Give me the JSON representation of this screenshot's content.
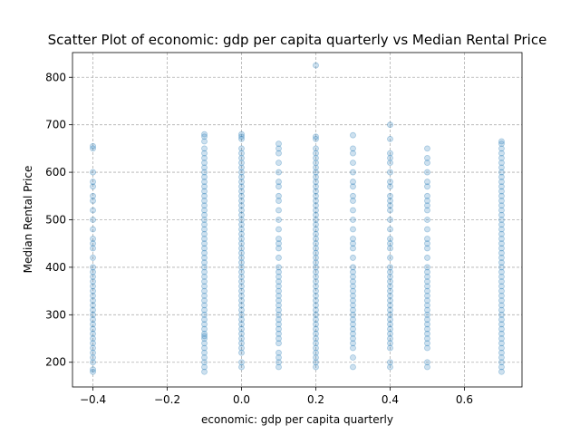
{
  "chart_data": {
    "type": "scatter",
    "title": "Scatter Plot of economic: gdp per capita quarterly vs Median Rental Price",
    "xlabel": "economic: gdp per capita quarterly",
    "ylabel": "Median Rental Price",
    "xlim": [
      -0.455,
      0.755
    ],
    "ylim": [
      148,
      852
    ],
    "xticks": [
      -0.4,
      -0.2,
      0.0,
      0.2,
      0.4,
      0.6
    ],
    "xtick_labels": [
      "−0.4",
      "−0.2",
      "0.0",
      "0.2",
      "0.4",
      "0.6"
    ],
    "yticks": [
      200,
      300,
      400,
      500,
      600,
      700,
      800
    ],
    "ytick_labels": [
      "200",
      "300",
      "400",
      "500",
      "600",
      "700",
      "800"
    ],
    "grid": true,
    "color": "#1f77b4",
    "series": [
      {
        "points": [
          {
            "x": -0.4,
            "y": [
              180,
              185,
              200,
              210,
              220,
              230,
              240,
              250,
              260,
              270,
              280,
              290,
              300,
              310,
              320,
              330,
              340,
              350,
              360,
              370,
              380,
              390,
              400,
              420,
              440,
              450,
              460,
              480,
              500,
              520,
              540,
              550,
              570,
              580,
              600,
              650,
              655
            ]
          },
          {
            "x": -0.1,
            "y": [
              180,
              190,
              200,
              210,
              220,
              230,
              240,
              250,
              255,
              260,
              270,
              280,
              290,
              300,
              310,
              320,
              330,
              340,
              350,
              360,
              370,
              380,
              390,
              400,
              410,
              420,
              430,
              440,
              450,
              460,
              470,
              480,
              490,
              500,
              510,
              520,
              530,
              540,
              550,
              560,
              570,
              580,
              590,
              600,
              610,
              620,
              630,
              640,
              650,
              665,
              675,
              680
            ]
          },
          {
            "x": 0.0,
            "y": [
              190,
              200,
              220,
              230,
              240,
              250,
              260,
              270,
              280,
              290,
              300,
              310,
              320,
              330,
              340,
              350,
              360,
              370,
              380,
              390,
              400,
              410,
              420,
              430,
              440,
              450,
              460,
              470,
              480,
              490,
              500,
              510,
              520,
              530,
              540,
              550,
              560,
              570,
              580,
              590,
              600,
              610,
              620,
              630,
              640,
              650,
              670,
              675,
              680
            ]
          },
          {
            "x": 0.1,
            "y": [
              190,
              200,
              210,
              220,
              240,
              250,
              260,
              270,
              280,
              290,
              300,
              310,
              320,
              330,
              340,
              350,
              360,
              370,
              380,
              390,
              400,
              420,
              440,
              450,
              460,
              480,
              500,
              520,
              540,
              550,
              570,
              580,
              600,
              620,
              640,
              650,
              660
            ]
          },
          {
            "x": 0.2,
            "y": [
              190,
              200,
              210,
              220,
              230,
              240,
              250,
              260,
              270,
              280,
              290,
              300,
              310,
              320,
              330,
              340,
              350,
              360,
              370,
              380,
              390,
              400,
              410,
              420,
              430,
              440,
              450,
              460,
              470,
              480,
              490,
              500,
              510,
              520,
              530,
              540,
              550,
              560,
              570,
              580,
              590,
              600,
              610,
              620,
              630,
              640,
              650,
              670,
              675,
              825
            ]
          },
          {
            "x": 0.3,
            "y": [
              190,
              210,
              230,
              240,
              250,
              260,
              270,
              280,
              290,
              300,
              310,
              320,
              330,
              340,
              350,
              360,
              370,
              380,
              390,
              400,
              420,
              440,
              450,
              460,
              480,
              500,
              520,
              540,
              550,
              570,
              580,
              600,
              620,
              640,
              650,
              678
            ]
          },
          {
            "x": 0.4,
            "y": [
              190,
              200,
              230,
              240,
              250,
              260,
              270,
              280,
              290,
              300,
              310,
              320,
              330,
              340,
              350,
              360,
              370,
              380,
              390,
              400,
              420,
              440,
              450,
              460,
              480,
              500,
              520,
              530,
              540,
              550,
              570,
              580,
              600,
              620,
              630,
              640,
              670,
              700
            ]
          },
          {
            "x": 0.5,
            "y": [
              190,
              200,
              230,
              240,
              250,
              260,
              270,
              280,
              290,
              300,
              310,
              320,
              330,
              340,
              350,
              360,
              370,
              380,
              390,
              400,
              420,
              440,
              450,
              460,
              480,
              500,
              520,
              530,
              540,
              550,
              570,
              580,
              600,
              620,
              630,
              650
            ]
          },
          {
            "x": 0.7,
            "y": [
              180,
              190,
              200,
              210,
              220,
              230,
              240,
              250,
              260,
              270,
              280,
              290,
              300,
              310,
              320,
              330,
              340,
              350,
              360,
              370,
              380,
              390,
              400,
              410,
              420,
              430,
              440,
              450,
              460,
              470,
              480,
              490,
              500,
              510,
              520,
              530,
              540,
              550,
              560,
              570,
              580,
              590,
              600,
              610,
              620,
              630,
              640,
              650,
              660,
              665
            ]
          }
        ]
      }
    ]
  }
}
